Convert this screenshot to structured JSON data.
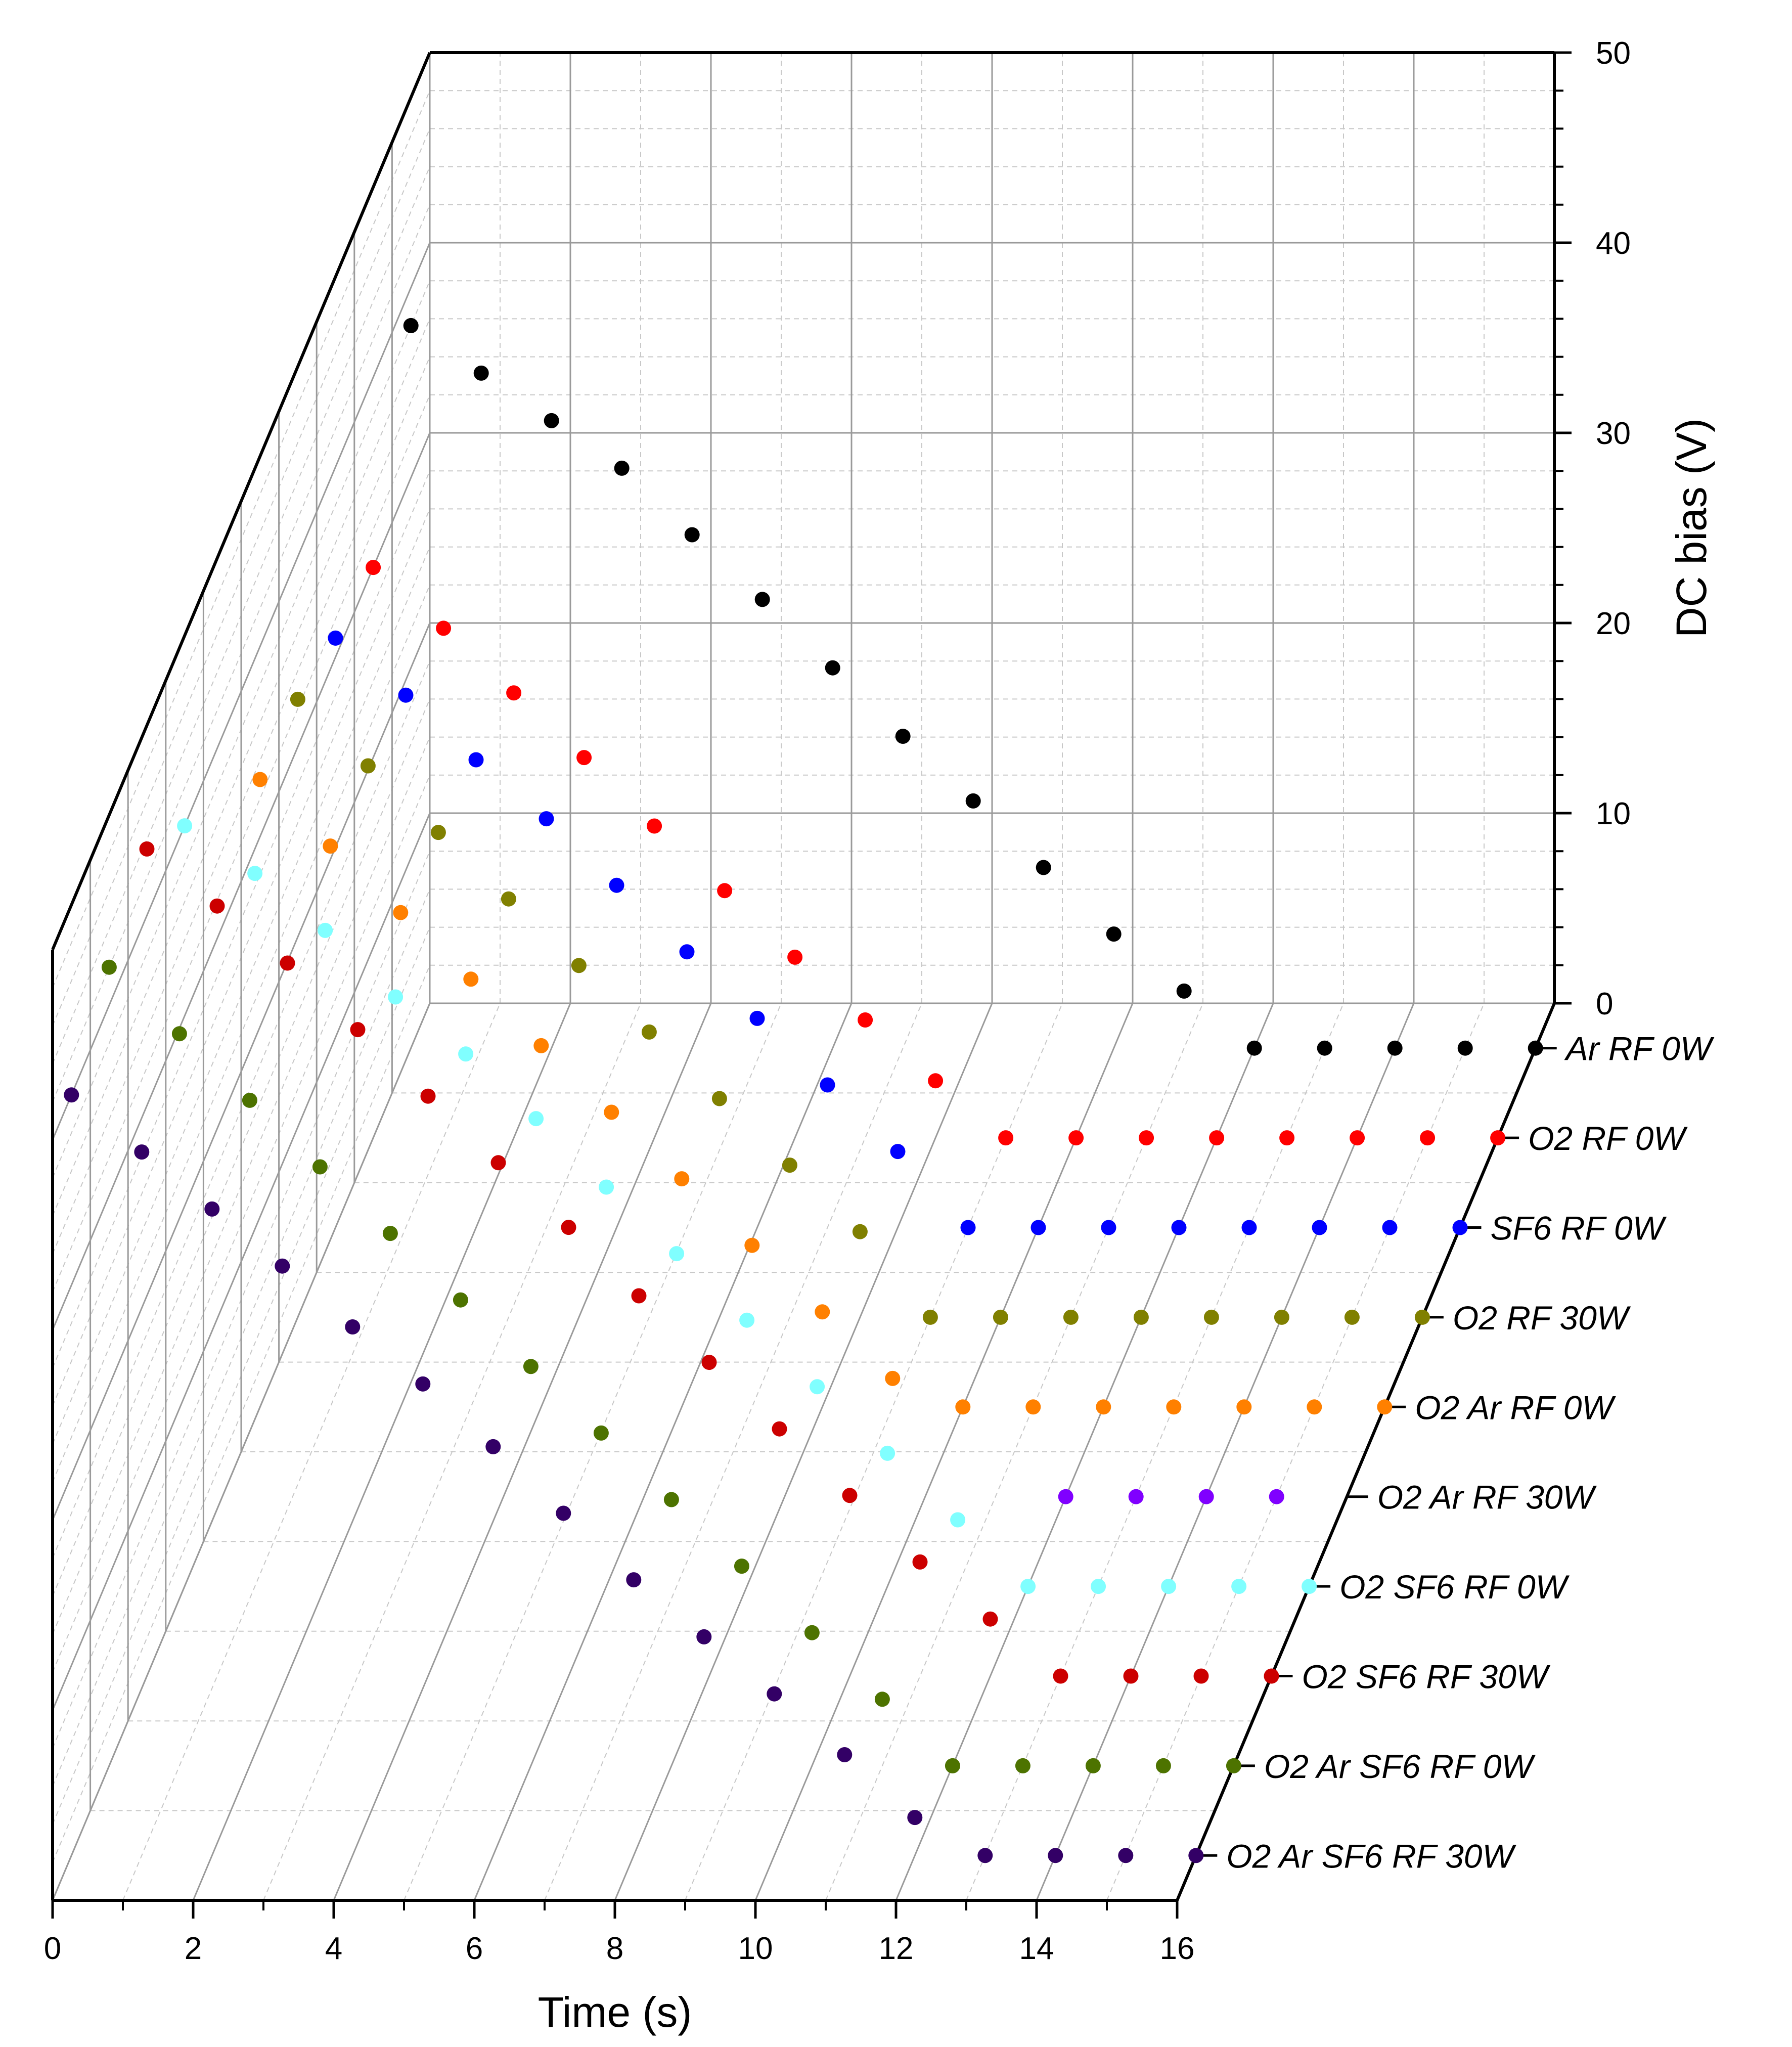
{
  "chart_data": {
    "type": "scatter",
    "title": "",
    "xlabel": "Time (s)",
    "ylabel": "DC bias (V)",
    "xlim": [
      0,
      16
    ],
    "zlim": [
      0,
      50
    ],
    "x_ticks": [
      "0",
      "2",
      "4",
      "6",
      "8",
      "10",
      "12",
      "14",
      "16"
    ],
    "z_ticks": [
      "0",
      "10",
      "20",
      "30",
      "40",
      "50"
    ],
    "grid": true,
    "series": [
      {
        "name": "Ar RF 0W",
        "color": "#000000",
        "x": [
          0,
          1,
          2,
          3,
          4,
          5,
          6,
          7,
          8,
          9,
          10,
          11,
          12,
          13,
          14,
          15,
          16
        ],
        "y": [
          38,
          35.5,
          33,
          30.5,
          27,
          23.6,
          20,
          16.4,
          13,
          9.5,
          6,
          3,
          0,
          0,
          0,
          0,
          0
        ]
      },
      {
        "name": "O2 RF 0W",
        "color": "#ff0000",
        "x": [
          0,
          1,
          2,
          3,
          4,
          5,
          6,
          7,
          8,
          9,
          10,
          11,
          12,
          13,
          14,
          15,
          16
        ],
        "y": [
          30,
          26.8,
          23.4,
          20,
          16.4,
          13,
          9.5,
          6.2,
          3,
          0,
          0,
          0,
          0,
          0,
          0,
          0,
          0
        ]
      },
      {
        "name": "SF6 RF 0W",
        "color": "#0000ff",
        "x": [
          0,
          1,
          2,
          3,
          4,
          5,
          6,
          7,
          8,
          9,
          10,
          11,
          12,
          13,
          14,
          15,
          16
        ],
        "y": [
          31,
          28,
          24.6,
          21.5,
          18,
          14.5,
          11,
          7.5,
          4,
          0,
          0,
          0,
          0,
          0,
          0,
          0,
          0
        ]
      },
      {
        "name": "O2 RF 30W",
        "color": "#808000",
        "x": [
          0,
          1,
          2,
          3,
          4,
          5,
          6,
          7,
          8,
          9,
          10,
          11,
          12,
          13,
          14,
          15,
          16
        ],
        "y": [
          32.5,
          29,
          25.5,
          22,
          18.5,
          15,
          11.5,
          8,
          4.5,
          0,
          0,
          0,
          0,
          0,
          0,
          0,
          0
        ]
      },
      {
        "name": "O2 Ar RF 0W",
        "color": "#ff8000",
        "x": [
          0,
          1,
          2,
          3,
          4,
          5,
          6,
          7,
          8,
          9,
          10,
          11,
          12,
          13,
          14,
          15,
          16
        ],
        "y": [
          33,
          29.5,
          26,
          22.5,
          19,
          15.5,
          12,
          8.5,
          5,
          1.5,
          0,
          0,
          0,
          0,
          0,
          0,
          0
        ]
      },
      {
        "name": "O2 Ar RF 30W",
        "color": "#8000ff",
        "x": [
          12,
          13,
          14,
          15
        ],
        "y": [
          0,
          0,
          0,
          0
        ]
      },
      {
        "name": "O2 SF6 RF 0W",
        "color": "#80ffff",
        "x": [
          0,
          1,
          2,
          3,
          4,
          5,
          6,
          7,
          8,
          9,
          10,
          11,
          12,
          13,
          14,
          15,
          16
        ],
        "y": [
          40,
          37.5,
          34.5,
          31,
          28,
          24.6,
          21,
          17.5,
          14,
          10.5,
          7,
          3.5,
          0,
          0,
          0,
          0,
          0
        ]
      },
      {
        "name": "O2 SF6 RF 30W",
        "color": "#cc0000",
        "x": [
          0,
          1,
          2,
          3,
          4,
          5,
          6,
          7,
          8,
          9,
          10,
          11,
          12,
          13,
          14,
          15,
          16
        ],
        "y": [
          43.5,
          40.5,
          37.5,
          34,
          30.5,
          27,
          23.6,
          20,
          16.5,
          13,
          9.5,
          6,
          3,
          0,
          0,
          0,
          0
        ]
      },
      {
        "name": "O2 Ar SF6 RF 0W",
        "color": "#4d7300",
        "x": [
          0,
          1,
          2,
          3,
          4,
          5,
          6,
          7,
          8,
          9,
          10,
          11,
          12,
          13,
          14,
          15,
          16
        ],
        "y": [
          42,
          38.5,
          35,
          31.5,
          28,
          24.5,
          21,
          17.5,
          14,
          10.5,
          7,
          3.5,
          0,
          0,
          0,
          0,
          0
        ]
      },
      {
        "name": "O2 Ar SF6 RF 30W",
        "color": "#330066",
        "x": [
          0,
          1,
          2,
          3,
          4,
          5,
          6,
          7,
          8,
          9,
          10,
          11,
          12,
          13,
          14,
          15,
          16
        ],
        "y": [
          40,
          37,
          34,
          31,
          27.8,
          24.8,
          21.5,
          18,
          14.5,
          11.5,
          8.5,
          5.3,
          2,
          0,
          0,
          0,
          0
        ]
      }
    ]
  }
}
